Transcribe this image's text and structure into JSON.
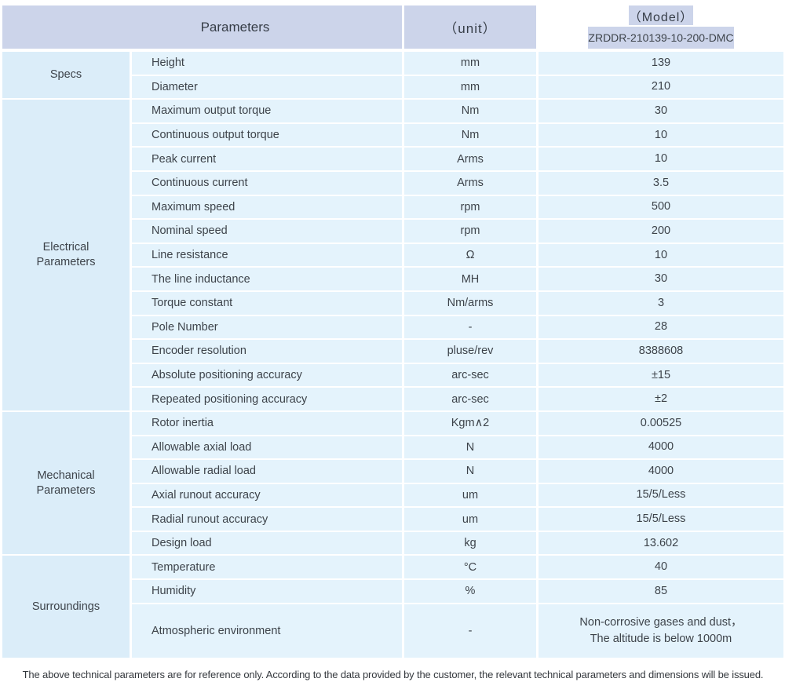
{
  "header": {
    "parameters_label": "Parameters",
    "unit_label": "（unit）",
    "model_label": "（Model）",
    "model_value": "ZRDDR-210139-10-200-DMC"
  },
  "sections": [
    {
      "id": "specs",
      "label_lines": [
        "Specs"
      ],
      "rows": [
        {
          "param": "Height",
          "unit": "mm",
          "value": "139"
        },
        {
          "param": "Diameter",
          "unit": "mm",
          "value": "210"
        }
      ]
    },
    {
      "id": "electrical-parameters",
      "label_lines": [
        "Electrical",
        "Parameters"
      ],
      "rows": [
        {
          "param": "Maximum output torque",
          "unit": "Nm",
          "value": "30"
        },
        {
          "param": "Continuous output torque",
          "unit": "Nm",
          "value": "10"
        },
        {
          "param": "Peak current",
          "unit": "Arms",
          "value": "10"
        },
        {
          "param": "Continuous current",
          "unit": "Arms",
          "value": "3.5"
        },
        {
          "param": "Maximum speed",
          "unit": "rpm",
          "value": "500"
        },
        {
          "param": "Nominal speed",
          "unit": "rpm",
          "value": "200"
        },
        {
          "param": "Line resistance",
          "unit": "Ω",
          "value": "10"
        },
        {
          "param": "The line inductance",
          "unit": "MH",
          "value": "30"
        },
        {
          "param": "Torque constant",
          "unit": "Nm/arms",
          "value": "3"
        },
        {
          "param": "Pole Number",
          "unit": "-",
          "value": "28"
        },
        {
          "param": "Encoder resolution",
          "unit": "pluse/rev",
          "value": "8388608"
        },
        {
          "param": "Absolute positioning accuracy",
          "unit": "arc-sec",
          "value": "±15"
        },
        {
          "param": "Repeated positioning accuracy",
          "unit": "arc-sec",
          "value": "±2"
        }
      ]
    },
    {
      "id": "mechanical-parameters",
      "label_lines": [
        "Mechanical",
        "Parameters"
      ],
      "rows": [
        {
          "param": "Rotor inertia",
          "unit": "Kgm∧2",
          "value": "0.00525"
        },
        {
          "param": "Allowable axial load",
          "unit": "N",
          "value": "4000"
        },
        {
          "param": "Allowable radial load",
          "unit": "N",
          "value": "4000"
        },
        {
          "param": "Axial runout accuracy",
          "unit": "um",
          "value": "15/5/Less"
        },
        {
          "param": "Radial runout accuracy",
          "unit": "um",
          "value": "15/5/Less"
        },
        {
          "param": "Design load",
          "unit": "kg",
          "value": "13.602"
        }
      ]
    },
    {
      "id": "surroundings",
      "label_lines": [
        "Surroundings"
      ],
      "rows": [
        {
          "param": "Temperature",
          "unit": "°C",
          "value": "40"
        },
        {
          "param": "Humidity",
          "unit": "%",
          "value": "85"
        },
        {
          "param": "Atmospheric environment",
          "unit": "-",
          "tall": true,
          "value_lines": [
            "Non-corrosive gases and dust，",
            "The altitude is below 1000m"
          ]
        }
      ]
    }
  ],
  "footer": {
    "note": "The above technical parameters are for reference only. According to the data provided by the customer, the relevant technical parameters and dimensions will be issued."
  },
  "colors": {
    "header_bg": "#ccd4ea",
    "section_label_bg": "#dbedf9",
    "cell_bg": "#e4f3fc",
    "text": "#3d434a",
    "page_bg": "#ffffff"
  }
}
